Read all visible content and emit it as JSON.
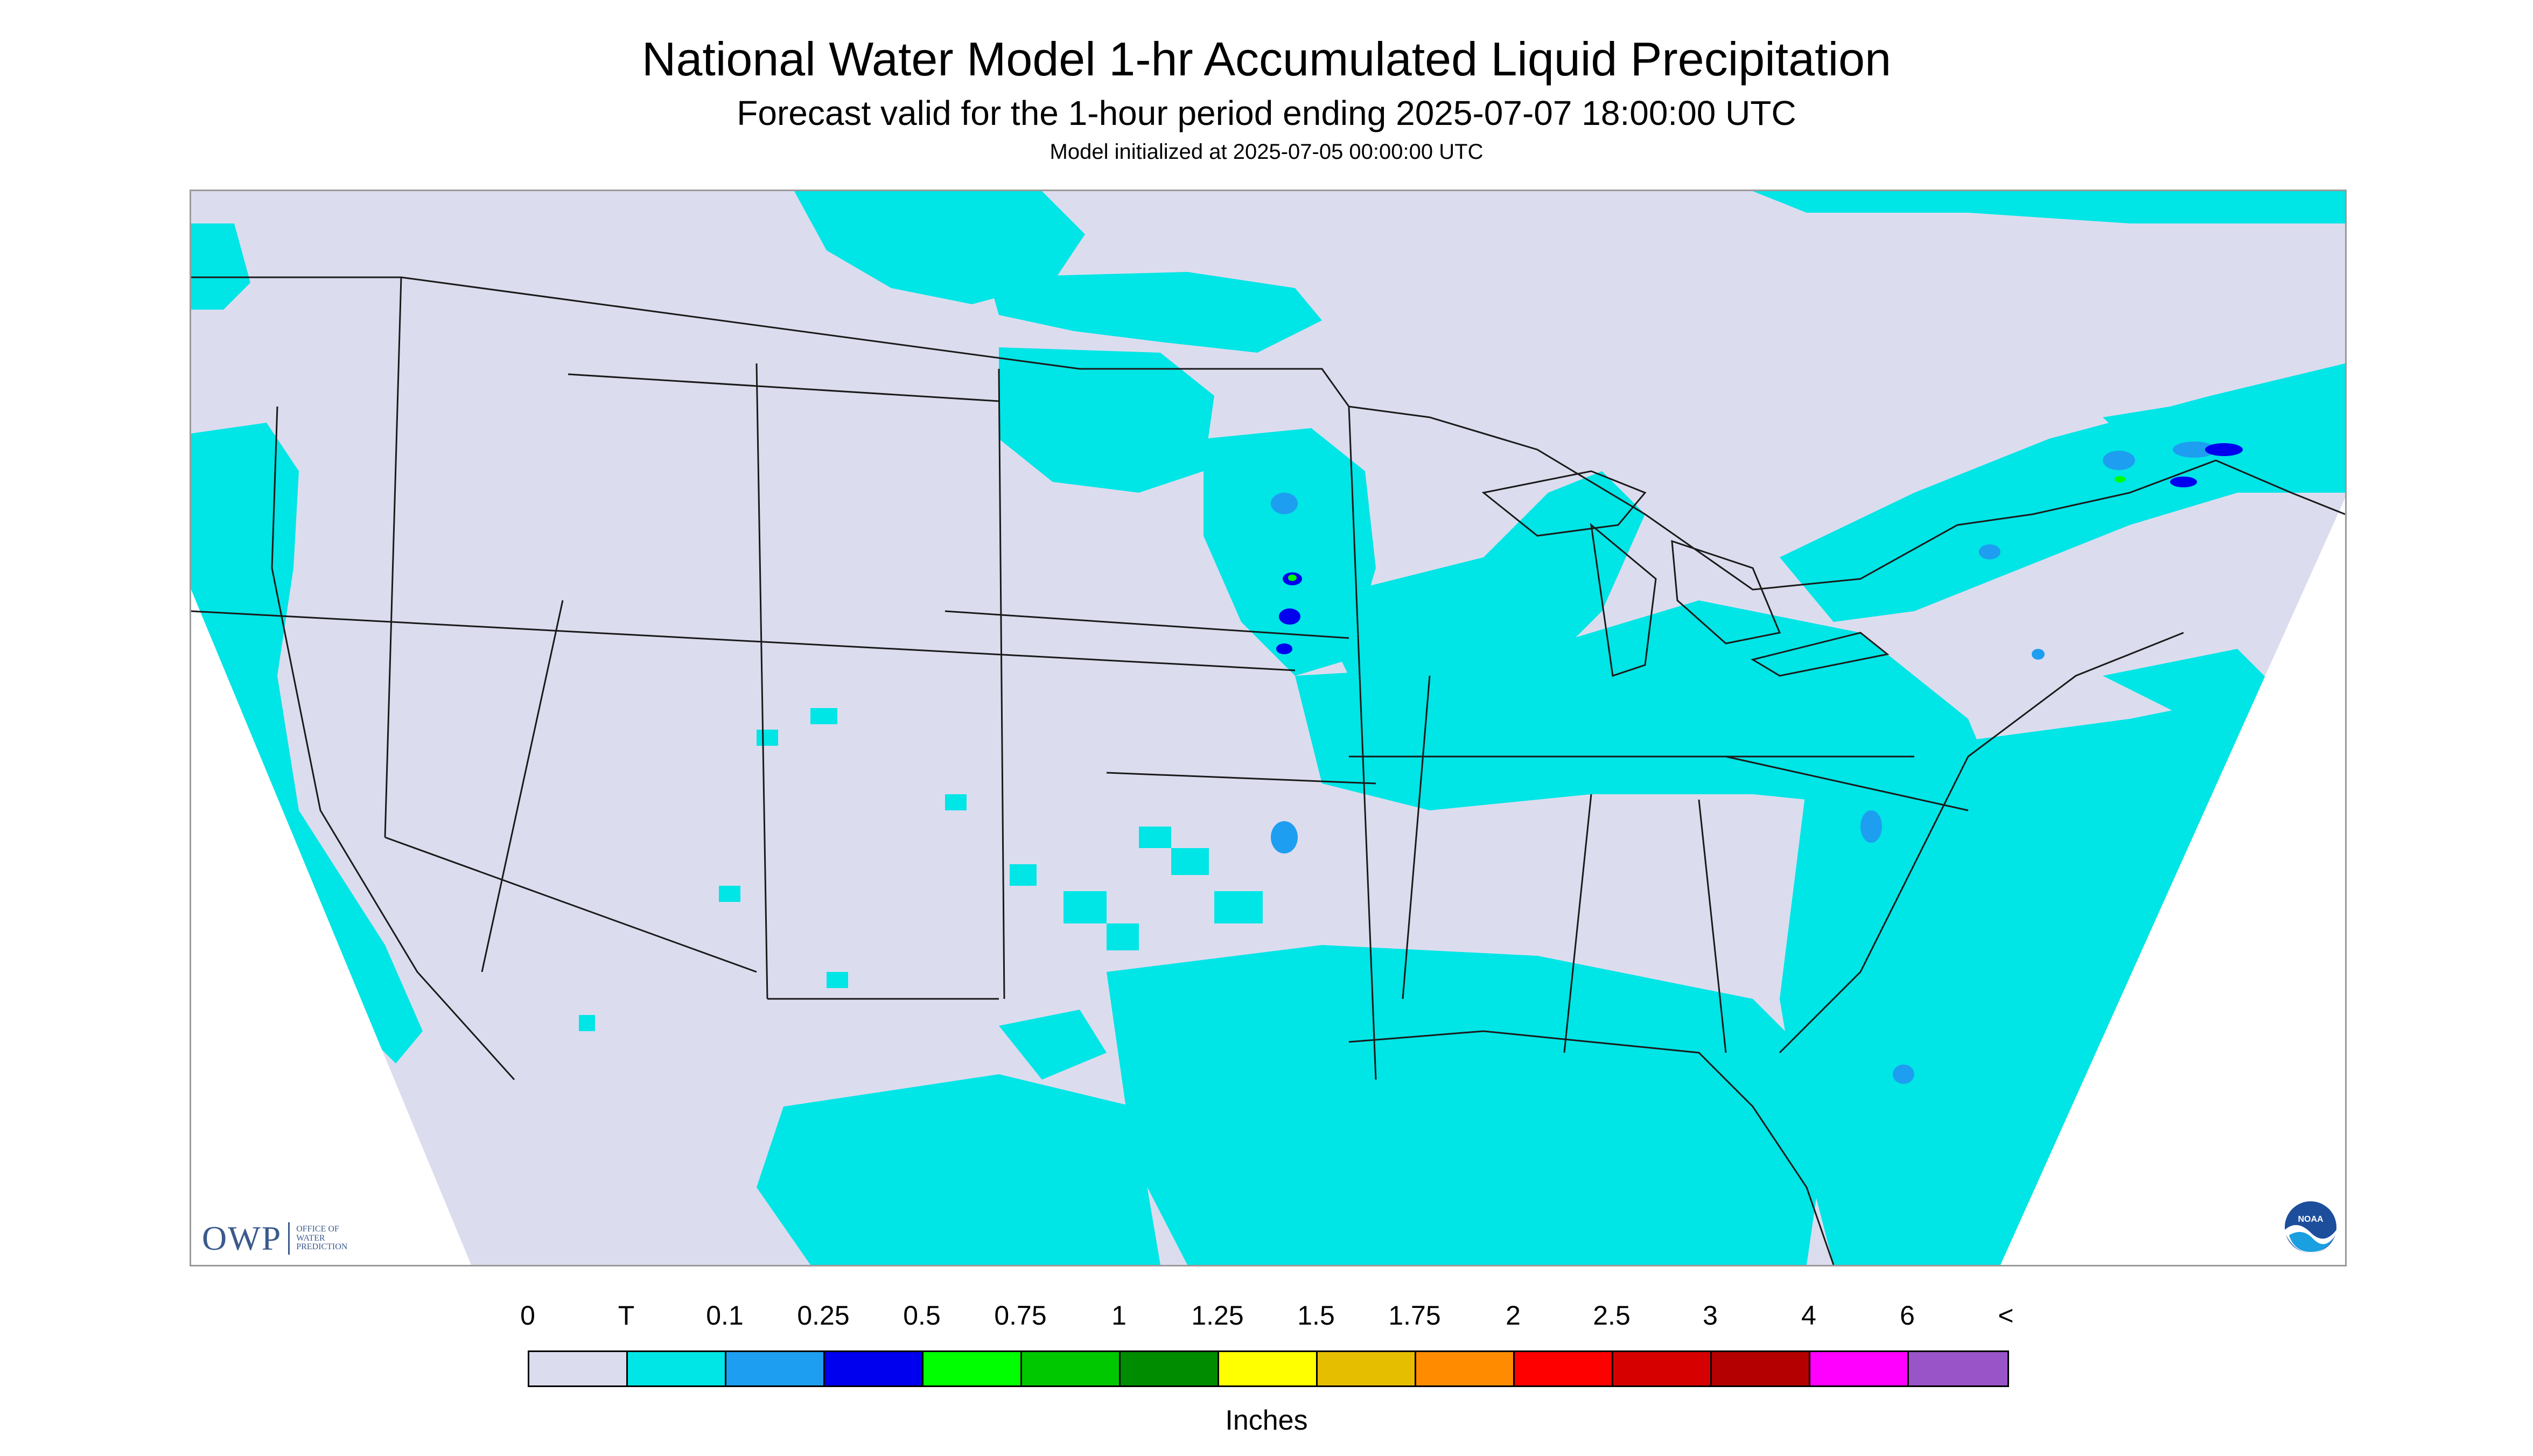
{
  "title": "National Water Model 1-hr Accumulated Liquid Precipitation",
  "subtitle": "Forecast valid for the 1-hour period ending 2025-07-07 18:00:00 UTC",
  "init_text": "Model initialized at 2025-07-05 00:00:00 UTC",
  "map": {
    "background_color": "#dcdcef",
    "projection": "Lambert conformal, CONUS",
    "logos": {
      "owp_text": "OWP",
      "owp_subtext": [
        "OFFICE OF",
        "WATER",
        "PREDICTION"
      ],
      "noaa_text": "NOAA"
    }
  },
  "legend": {
    "labels": [
      "0",
      "T",
      "0.1",
      "0.25",
      "0.5",
      "0.75",
      "1",
      "1.25",
      "1.5",
      "1.75",
      "2",
      "2.5",
      "3",
      "4",
      "6",
      "<"
    ],
    "colors": [
      "#dcdcef",
      "#00e5e5",
      "#1e9ef0",
      "#0000ee",
      "#00ff00",
      "#00c800",
      "#008c00",
      "#ffff00",
      "#e6be00",
      "#ff8c00",
      "#ff0000",
      "#d70000",
      "#b40000",
      "#ff00ff",
      "#9955c8"
    ],
    "units": "Inches"
  }
}
